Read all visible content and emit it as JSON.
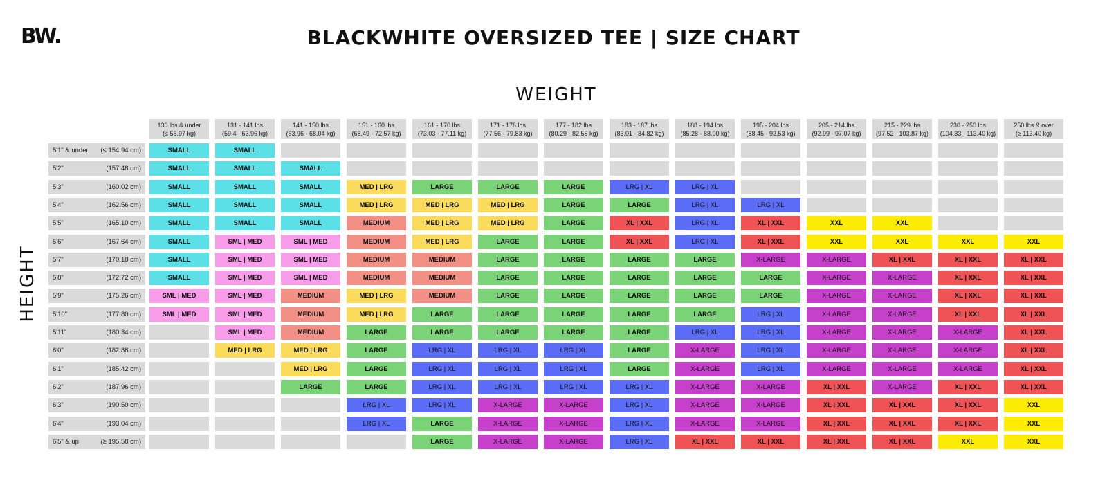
{
  "brand": {
    "logo": "BW."
  },
  "title": "BLACKWHITE OVERSIZED TEE | SIZE CHART",
  "axis": {
    "weight": "WEIGHT",
    "height": "HEIGHT"
  },
  "colors": {
    "SMALL": "#5be0e8",
    "SML | MED": "#f79ce9",
    "MEDIUM": "#f39085",
    "MED | LRG": "#fbdb5c",
    "LARGE": "#7ad376",
    "LRG | XL": "#5b6cf6",
    "X-LARGE": "#c640cc",
    "XL | XXL": "#f05356",
    "XXL": "#fceb02",
    "empty": "#dadada"
  },
  "weights": [
    {
      "lbs": "130 lbs & under",
      "kg": "(≤ 58.97 kg)"
    },
    {
      "lbs": "131 - 141 lbs",
      "kg": "(59.4 - 63.96 kg)"
    },
    {
      "lbs": "141 - 150 lbs",
      "kg": "(63.96 - 68.04 kg)"
    },
    {
      "lbs": "151 - 160 lbs",
      "kg": "(68.49 - 72.57 kg)"
    },
    {
      "lbs": "161 - 170 lbs",
      "kg": "(73.03 - 77.11 kg)"
    },
    {
      "lbs": "171 - 176 lbs",
      "kg": "(77.56 - 79.83 kg)"
    },
    {
      "lbs": "177 - 182 lbs",
      "kg": "(80.29 - 82.55 kg)"
    },
    {
      "lbs": "183 - 187 lbs",
      "kg": "(83.01 - 84.82 kg)"
    },
    {
      "lbs": "188 - 194 lbs",
      "kg": "(85.28 - 88.00 kg)"
    },
    {
      "lbs": "195 - 204 lbs",
      "kg": "(88.45 - 92.53 kg)"
    },
    {
      "lbs": "205 - 214 lbs",
      "kg": "(92.99 - 97.07 kg)"
    },
    {
      "lbs": "215 - 229 lbs",
      "kg": "(97.52 - 103.87 kg)"
    },
    {
      "lbs": "230 - 250 lbs",
      "kg": "(104.33 - 113.40 kg)"
    },
    {
      "lbs": "250 lbs & over",
      "kg": "(≥ 113.40 kg)"
    }
  ],
  "heights": [
    {
      "ft": "5'1\" & under",
      "cm": "(≤ 154.94 cm)"
    },
    {
      "ft": "5'2\"",
      "cm": "(157.48 cm)"
    },
    {
      "ft": "5'3\"",
      "cm": "(160.02 cm)"
    },
    {
      "ft": "5'4\"",
      "cm": "(162.56 cm)"
    },
    {
      "ft": "5'5\"",
      "cm": "(165.10 cm)"
    },
    {
      "ft": "5'6\"",
      "cm": "(167.64 cm)"
    },
    {
      "ft": "5'7\"",
      "cm": "(170.18 cm)"
    },
    {
      "ft": "5'8\"",
      "cm": "(172.72 cm)"
    },
    {
      "ft": "5'9\"",
      "cm": "(175.26 cm)"
    },
    {
      "ft": "5'10\"",
      "cm": "(177.80 cm)"
    },
    {
      "ft": "5'11\"",
      "cm": "(180.34 cm)"
    },
    {
      "ft": "6'0\"",
      "cm": "(182.88 cm)"
    },
    {
      "ft": "6'1\"",
      "cm": "(185.42 cm)"
    },
    {
      "ft": "6'2\"",
      "cm": "(187.96 cm)"
    },
    {
      "ft": "6'3\"",
      "cm": "(190.50 cm)"
    },
    {
      "ft": "6'4\"",
      "cm": "(193.04 cm)"
    },
    {
      "ft": "6'5\" & up",
      "cm": "(≥ 195.58 cm)"
    }
  ],
  "sizes": [
    [
      "SMALL",
      "SMALL",
      "",
      "",
      "",
      "",
      "",
      "",
      "",
      "",
      "",
      "",
      "",
      ""
    ],
    [
      "SMALL",
      "SMALL",
      "SMALL",
      "",
      "",
      "",
      "",
      "",
      "",
      "",
      "",
      "",
      "",
      ""
    ],
    [
      "SMALL",
      "SMALL",
      "SMALL",
      "MED | LRG",
      "LARGE",
      "LARGE",
      "LARGE",
      "LRG | XL",
      "LRG | XL",
      "",
      "",
      "",
      "",
      ""
    ],
    [
      "SMALL",
      "SMALL",
      "SMALL",
      "MED | LRG",
      "MED | LRG",
      "MED | LRG",
      "LARGE",
      "LARGE",
      "LRG | XL",
      "LRG | XL",
      "",
      "",
      "",
      ""
    ],
    [
      "SMALL",
      "SMALL",
      "SMALL",
      "MEDIUM",
      "MED | LRG",
      "MED | LRG",
      "LARGE",
      "XL | XXL",
      "LRG | XL",
      "XL | XXL",
      "XXL",
      "XXL",
      "",
      ""
    ],
    [
      "SMALL",
      "SML | MED",
      "SML | MED",
      "MEDIUM",
      "MED | LRG",
      "LARGE",
      "LARGE",
      "XL | XXL",
      "LRG | XL",
      "XL | XXL",
      "XXL",
      "XXL",
      "XXL",
      "XXL"
    ],
    [
      "SMALL",
      "SML | MED",
      "SML | MED",
      "MEDIUM",
      "MEDIUM",
      "LARGE",
      "LARGE",
      "LARGE",
      "LARGE",
      "X-LARGE",
      "X-LARGE",
      "XL | XXL",
      "XL | XXL",
      "XL | XXL"
    ],
    [
      "SMALL",
      "SML | MED",
      "SML | MED",
      "MEDIUM",
      "MEDIUM",
      "LARGE",
      "LARGE",
      "LARGE",
      "LARGE",
      "LARGE",
      "X-LARGE",
      "X-LARGE",
      "XL | XXL",
      "XL | XXL"
    ],
    [
      "SML | MED",
      "SML | MED",
      "MEDIUM",
      "MED | LRG",
      "MEDIUM",
      "LARGE",
      "LARGE",
      "LARGE",
      "LARGE",
      "LARGE",
      "X-LARGE",
      "X-LARGE",
      "XL | XXL",
      "XL | XXL"
    ],
    [
      "SML | MED",
      "SML | MED",
      "MEDIUM",
      "MED | LRG",
      "LARGE",
      "LARGE",
      "LARGE",
      "LARGE",
      "LARGE",
      "LRG | XL",
      "X-LARGE",
      "X-LARGE",
      "XL | XXL",
      "XL | XXL"
    ],
    [
      "",
      "SML | MED",
      "MEDIUM",
      "LARGE",
      "LARGE",
      "LARGE",
      "LARGE",
      "LARGE",
      "LRG | XL",
      "LRG | XL",
      "X-LARGE",
      "X-LARGE",
      "X-LARGE",
      "XL | XXL"
    ],
    [
      "",
      "MED | LRG",
      "MED | LRG",
      "LARGE",
      "LRG | XL",
      "LRG | XL",
      "LRG | XL",
      "LARGE",
      "X-LARGE",
      "LRG | XL",
      "X-LARGE",
      "X-LARGE",
      "X-LARGE",
      "XL | XXL"
    ],
    [
      "",
      "",
      "MED | LRG",
      "LARGE",
      "LRG | XL",
      "LRG | XL",
      "LRG | XL",
      "LARGE",
      "X-LARGE",
      "LRG | XL",
      "X-LARGE",
      "X-LARGE",
      "X-LARGE",
      "XL | XXL"
    ],
    [
      "",
      "",
      "LARGE",
      "LARGE",
      "LRG | XL",
      "LRG | XL",
      "LRG | XL",
      "LRG | XL",
      "X-LARGE",
      "X-LARGE",
      "XL | XXL",
      "X-LARGE",
      "XL | XXL",
      "XL | XXL"
    ],
    [
      "",
      "",
      "",
      "LRG | XL",
      "LRG | XL",
      "X-LARGE",
      "X-LARGE",
      "LRG | XL",
      "X-LARGE",
      "X-LARGE",
      "XL | XXL",
      "XL | XXL",
      "XL | XXL",
      "XXL"
    ],
    [
      "",
      "",
      "",
      "LRG | XL",
      "LARGE",
      "X-LARGE",
      "X-LARGE",
      "LRG | XL",
      "X-LARGE",
      "X-LARGE",
      "XL | XXL",
      "XL | XXL",
      "XL | XXL",
      "XXL"
    ],
    [
      "",
      "",
      "",
      "",
      "LARGE",
      "X-LARGE",
      "X-LARGE",
      "LRG | XL",
      "XL | XXL",
      "XL | XXL",
      "XL | XXL",
      "XL | XXL",
      "XXL",
      "XXL"
    ]
  ]
}
